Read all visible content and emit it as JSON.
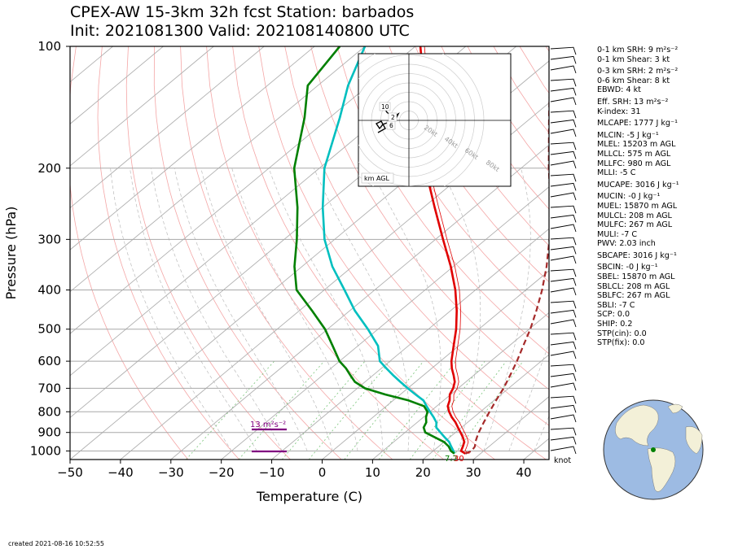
{
  "title": {
    "line1": "CPEX-AW 15-3km  32h fcst  Station: barbados",
    "line2": "Init: 2021081300  Valid: 202108140800 UTC"
  },
  "footer": {
    "created": "created 2021-08-16 10:52:55"
  },
  "indices": [
    "0-1 km SRH: 9 m²s⁻²",
    "0-1 km Shear: 3 kt",
    "0-3 km SRH: 2 m²s⁻²",
    "0-6 km Shear: 8 kt",
    "EBWD: 4 kt",
    "Eff. SRH: 13 m²s⁻²",
    "K-index: 31",
    "MLCAPE: 1777 J kg⁻¹",
    "MLCIN: -5 J kg⁻¹",
    "MLEL: 15203 m AGL",
    "MLLCL: 575 m AGL",
    "MLLFC: 980 m AGL",
    "MLLI: -5 C",
    "MUCAPE: 3016 J kg⁻¹",
    "MUCIN: -0 J kg⁻¹",
    "MUEL: 15870 m AGL",
    "MULCL: 208 m AGL",
    "MULFC: 267 m AGL",
    "MULI: -7 C",
    "PWV: 2.03 inch",
    "SBCAPE: 3016 J kg⁻¹",
    "SBCIN: -0 J kg⁻¹",
    "SBEL: 15870 m AGL",
    "SBLCL: 208 m AGL",
    "SBLFC: 267 m AGL",
    "SBLI: -7 C",
    "SCP: 0.0",
    "SHIP: 0.2",
    "STP(cin): 0.0",
    "STP(fix): 0.0"
  ],
  "chart_data": {
    "type": "line",
    "xlabel": "Temperature (C)",
    "ylabel": "Pressure (hPa)",
    "xlim": [
      -50,
      45
    ],
    "ylim": [
      1050,
      100
    ],
    "yscale": "log",
    "x_ticks": [
      -50,
      -40,
      -30,
      -20,
      -10,
      0,
      10,
      20,
      30,
      40
    ],
    "y_ticks": [
      100,
      200,
      300,
      400,
      500,
      600,
      700,
      800,
      900,
      1000
    ],
    "grid": true,
    "skew": true,
    "series": [
      {
        "color": "#e00000",
        "p": [
          1015,
          1000,
          975,
          950,
          925,
          900,
          875,
          850,
          825,
          800,
          775,
          750,
          725,
          700,
          675,
          650,
          625,
          600,
          550,
          500,
          450,
          400,
          350,
          300,
          250,
          200,
          150,
          125,
          100
        ],
        "t": [
          27.0,
          25.5,
          24.8,
          24.0,
          22.6,
          21.0,
          19.3,
          17.6,
          15.6,
          13.8,
          12.2,
          11.2,
          9.8,
          9.0,
          7.8,
          6.0,
          4.0,
          2.2,
          -1.0,
          -4.5,
          -8.8,
          -14.0,
          -20.5,
          -28.5,
          -37.8,
          -49.0,
          -61.0,
          -69.0,
          -79.0
        ]
      },
      {
        "color": "#00bfbf",
        "p": [
          1015,
          1000,
          975,
          950,
          925,
          900,
          875,
          850,
          825,
          800,
          775,
          750,
          725,
          700,
          675,
          650,
          625,
          600,
          550,
          500,
          450,
          400,
          350,
          300,
          250,
          200,
          150,
          125,
          100
        ],
        "t": [
          24.8,
          24.0,
          22.5,
          21.0,
          19.0,
          17.0,
          15.0,
          13.8,
          12.0,
          10.0,
          8.0,
          6.0,
          3.0,
          0.0,
          -3.0,
          -6.0,
          -9.0,
          -12.0,
          -16.0,
          -22.0,
          -29.0,
          -36.0,
          -44.0,
          -52.0,
          -60.0,
          -69.0,
          -78.0,
          -84.0,
          -90.0
        ]
      },
      {
        "color": "#008000",
        "p": [
          1015,
          1000,
          975,
          950,
          925,
          900,
          875,
          850,
          825,
          800,
          775,
          750,
          725,
          700,
          675,
          650,
          625,
          600,
          550,
          500,
          450,
          400,
          350,
          300,
          250,
          200,
          150,
          125,
          100
        ],
        "t": [
          24.8,
          23.5,
          22.0,
          20.0,
          17.0,
          14.0,
          12.5,
          11.8,
          10.5,
          9.5,
          7.5,
          3.0,
          -3.0,
          -8.5,
          -12.0,
          -14.5,
          -17.0,
          -20.0,
          -25.0,
          -30.5,
          -37.5,
          -45.5,
          -51.5,
          -57.5,
          -65.0,
          -75.0,
          -85.0,
          -92.0,
          -95.0
        ]
      },
      {
        "color": "#a52a2a",
        "dashed": true,
        "p": [
          1015,
          1000,
          975,
          950,
          925,
          900,
          850,
          800,
          750,
          700,
          650,
          600,
          550,
          500,
          450,
          400,
          350,
          300,
          250,
          200,
          150,
          125,
          100
        ],
        "t": [
          27.0,
          27.6,
          27.2,
          26.2,
          25.4,
          24.6,
          23.2,
          21.8,
          20.4,
          19.0,
          17.2,
          15.2,
          12.8,
          10.2,
          7.0,
          3.2,
          -1.5,
          -7.4,
          -14.8,
          -24.5,
          -36.5,
          -44.0,
          -52.0
        ]
      }
    ],
    "annotations": [
      {
        "text": "13 m²s⁻²",
        "color": "#800080"
      },
      {
        "text": "7.7",
        "color": "#008000"
      },
      {
        "text": "30",
        "color": "#e00000"
      },
      {
        "text": "knot",
        "color": "#000000"
      }
    ],
    "hodograph": {
      "rings_kt": [
        20,
        40,
        60,
        80
      ],
      "ring_labels": [
        "20kt",
        "40kt",
        "60kt",
        "80kt"
      ],
      "height_labels": [
        "10",
        "2",
        "6"
      ],
      "legend": "km AGL"
    }
  }
}
